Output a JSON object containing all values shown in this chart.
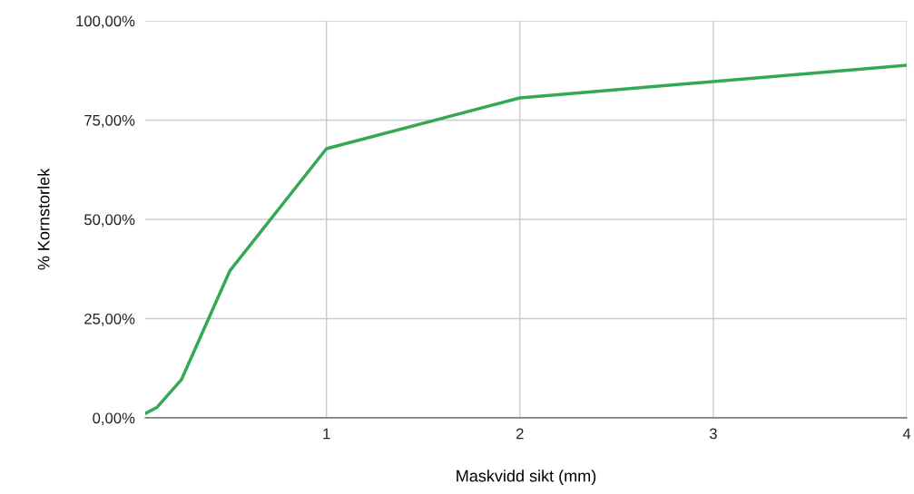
{
  "chart_data": {
    "type": "line",
    "xlabel": "Maskvidd sikt (mm)",
    "ylabel": "% Kornstorlek",
    "x": [
      0.063,
      0.125,
      0.25,
      0.5,
      1,
      2,
      4
    ],
    "series": [
      {
        "color": "#34a853",
        "values": [
          1.1,
          2.7,
          9.6,
          37,
          67.8,
          80.6,
          88.8
        ]
      }
    ],
    "xlim": [
      0.063,
      4
    ],
    "xticks": [
      1,
      2,
      3,
      4
    ],
    "ylim": [
      0,
      100
    ],
    "yticks": [
      {
        "value": 0,
        "label": "0,00%"
      },
      {
        "value": 25,
        "label": "25,00%"
      },
      {
        "value": 50,
        "label": "50,00%"
      },
      {
        "value": 75,
        "label": "75,00%"
      },
      {
        "value": 100,
        "label": "100,00%"
      }
    ],
    "grid": true,
    "marker": "none",
    "line_style": "solid"
  }
}
